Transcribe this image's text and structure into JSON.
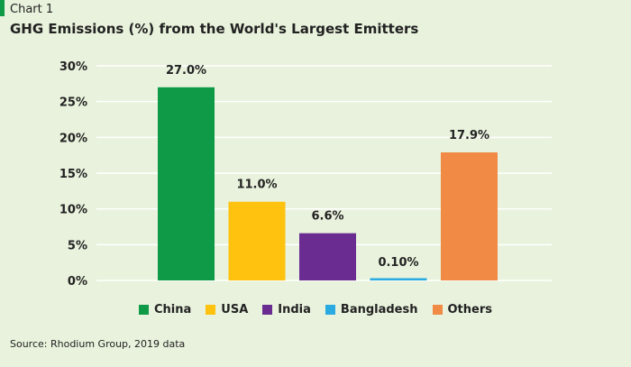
{
  "header": {
    "kicker": "Chart 1",
    "title": "GHG Emissions (%) from the World's Largest Emitters"
  },
  "footer": {
    "source": "Source: Rhodium Group, 2019 data"
  },
  "colors": {
    "background": "#e8f2dc",
    "gridline": "#ffffff",
    "accent": "#0f9a48"
  },
  "chart_data": {
    "type": "bar",
    "title": "GHG Emissions (%) from the World's Largest Emitters",
    "xlabel": "",
    "ylabel": "",
    "categories": [
      "China",
      "USA",
      "India",
      "Bangladesh",
      "Others"
    ],
    "values": [
      27.0,
      11.0,
      6.6,
      0.1,
      17.9
    ],
    "data_labels": [
      "27.0%",
      "11.0%",
      "6.6%",
      "0.10%",
      "17.9%"
    ],
    "colors": [
      "#0f9a48",
      "#ffc20e",
      "#6a2c91",
      "#29abe2",
      "#f08a44"
    ],
    "ylim": [
      0,
      30
    ],
    "yticks": [
      0,
      5,
      10,
      15,
      20,
      25,
      30
    ],
    "ytick_labels": [
      "0%",
      "5%",
      "10%",
      "15%",
      "20%",
      "25%",
      "30%"
    ],
    "grid": true,
    "legend_position": "bottom"
  }
}
